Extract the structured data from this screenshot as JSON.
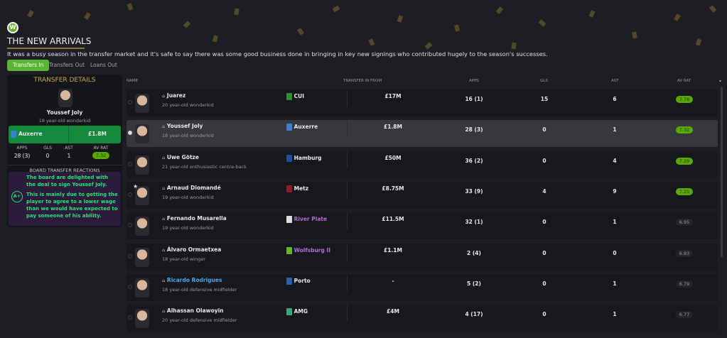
{
  "header": {
    "logo": "W",
    "title": "THE NEW ARRIVALS",
    "description": "It was a busy season in the transfer market and it's safe to say there was some good business done in bringing in key new signings who contributed hugely to the season's successes."
  },
  "tabs": [
    {
      "label": "Transfers In",
      "active": true
    },
    {
      "label": "Transfers Out"
    },
    {
      "label": "Loans Out"
    }
  ],
  "panel": {
    "title": "TRANSFER DETAILS",
    "name": "Youssef Joly",
    "desc": "18 year-old wonderkid",
    "club": "Auxerre",
    "fee": "£1.8M",
    "stat_labels": [
      "APPS",
      "GLS",
      "AST",
      "AV RAT"
    ],
    "stats": [
      "28 (3)",
      "0",
      "1",
      "7.32"
    ],
    "reactions_title": "BOARD TRANSFER REACTIONS",
    "grade": "A+",
    "reaction1": "The board are delighted with the deal to sign Youssef Joly.",
    "reaction2": "This is mainly due to getting the player to agree to a lower wage than we would have expected to pay someone of his ability."
  },
  "columns": {
    "name": "NAME",
    "from": "TRANSFER IN FROM",
    "apps": "APPS",
    "gls": "GLS",
    "ast": "AST",
    "rat": "AV RAT"
  },
  "colors": {
    "accent": "#5ab533",
    "rating_good": "#5aa800",
    "reaction": "#27e07a",
    "gold": "#c9a84c"
  },
  "rows": [
    {
      "name": "Juarez",
      "desc": "20 year-old wonderkid",
      "club": "CUI",
      "fee": "£17M",
      "apps": "16 (1)",
      "gls": "15",
      "ast": "6",
      "rat": "7.76",
      "good": true,
      "badge": "#2e8b3a"
    },
    {
      "name": "Youssef Joly",
      "desc": "18 year-old wonderkid",
      "club": "Auxerre",
      "fee": "£1.8M",
      "apps": "28 (3)",
      "gls": "0",
      "ast": "1",
      "rat": "7.32",
      "good": true,
      "selected": true,
      "badge": "#3a7fd0"
    },
    {
      "name": "Uwe Götze",
      "desc": "21 year-old enthusiastic centre-back",
      "club": "Hamburg",
      "fee": "£50M",
      "apps": "36 (2)",
      "gls": "0",
      "ast": "4",
      "rat": "7.29",
      "good": true,
      "badge": "#1d4f9a"
    },
    {
      "name": "Arnaud Diomandé",
      "desc": "19 year-old wonderkid",
      "club": "Metz",
      "fee": "£8.75M",
      "apps": "33 (9)",
      "gls": "4",
      "ast": "9",
      "rat": "7.25",
      "good": true,
      "star": true,
      "badge": "#8a1f2a"
    },
    {
      "name": "Fernando Musarella",
      "desc": "19 year-old wonderkid",
      "club": "River Plate",
      "fee": "£11.5M",
      "apps": "32 (1)",
      "gls": "0",
      "ast": "1",
      "rat": "6.95",
      "purple": true,
      "badge": "#ddd"
    },
    {
      "name": "Álvaro Ormaetxea",
      "desc": "18 year-old winger",
      "club": "Wolfsburg II",
      "fee": "£1.1M",
      "apps": "2 (4)",
      "gls": "0",
      "ast": "0",
      "rat": "6.83",
      "purple": true,
      "badge": "#65b32e"
    },
    {
      "name": "Ricardo Rodrigues",
      "desc": "18 year-old defensive midfielder",
      "club": "Porto",
      "fee": "-",
      "apps": "5 (2)",
      "gls": "0",
      "ast": "1",
      "rat": "6.79",
      "link": true,
      "badge": "#2b5fb0"
    },
    {
      "name": "Alhassan Olawoyin",
      "desc": "20 year-old defensive midfielder",
      "club": "AMG",
      "fee": "£4M",
      "apps": "4 (17)",
      "gls": "0",
      "ast": "1",
      "rat": "6.77",
      "badge": "#3aa67a"
    }
  ]
}
